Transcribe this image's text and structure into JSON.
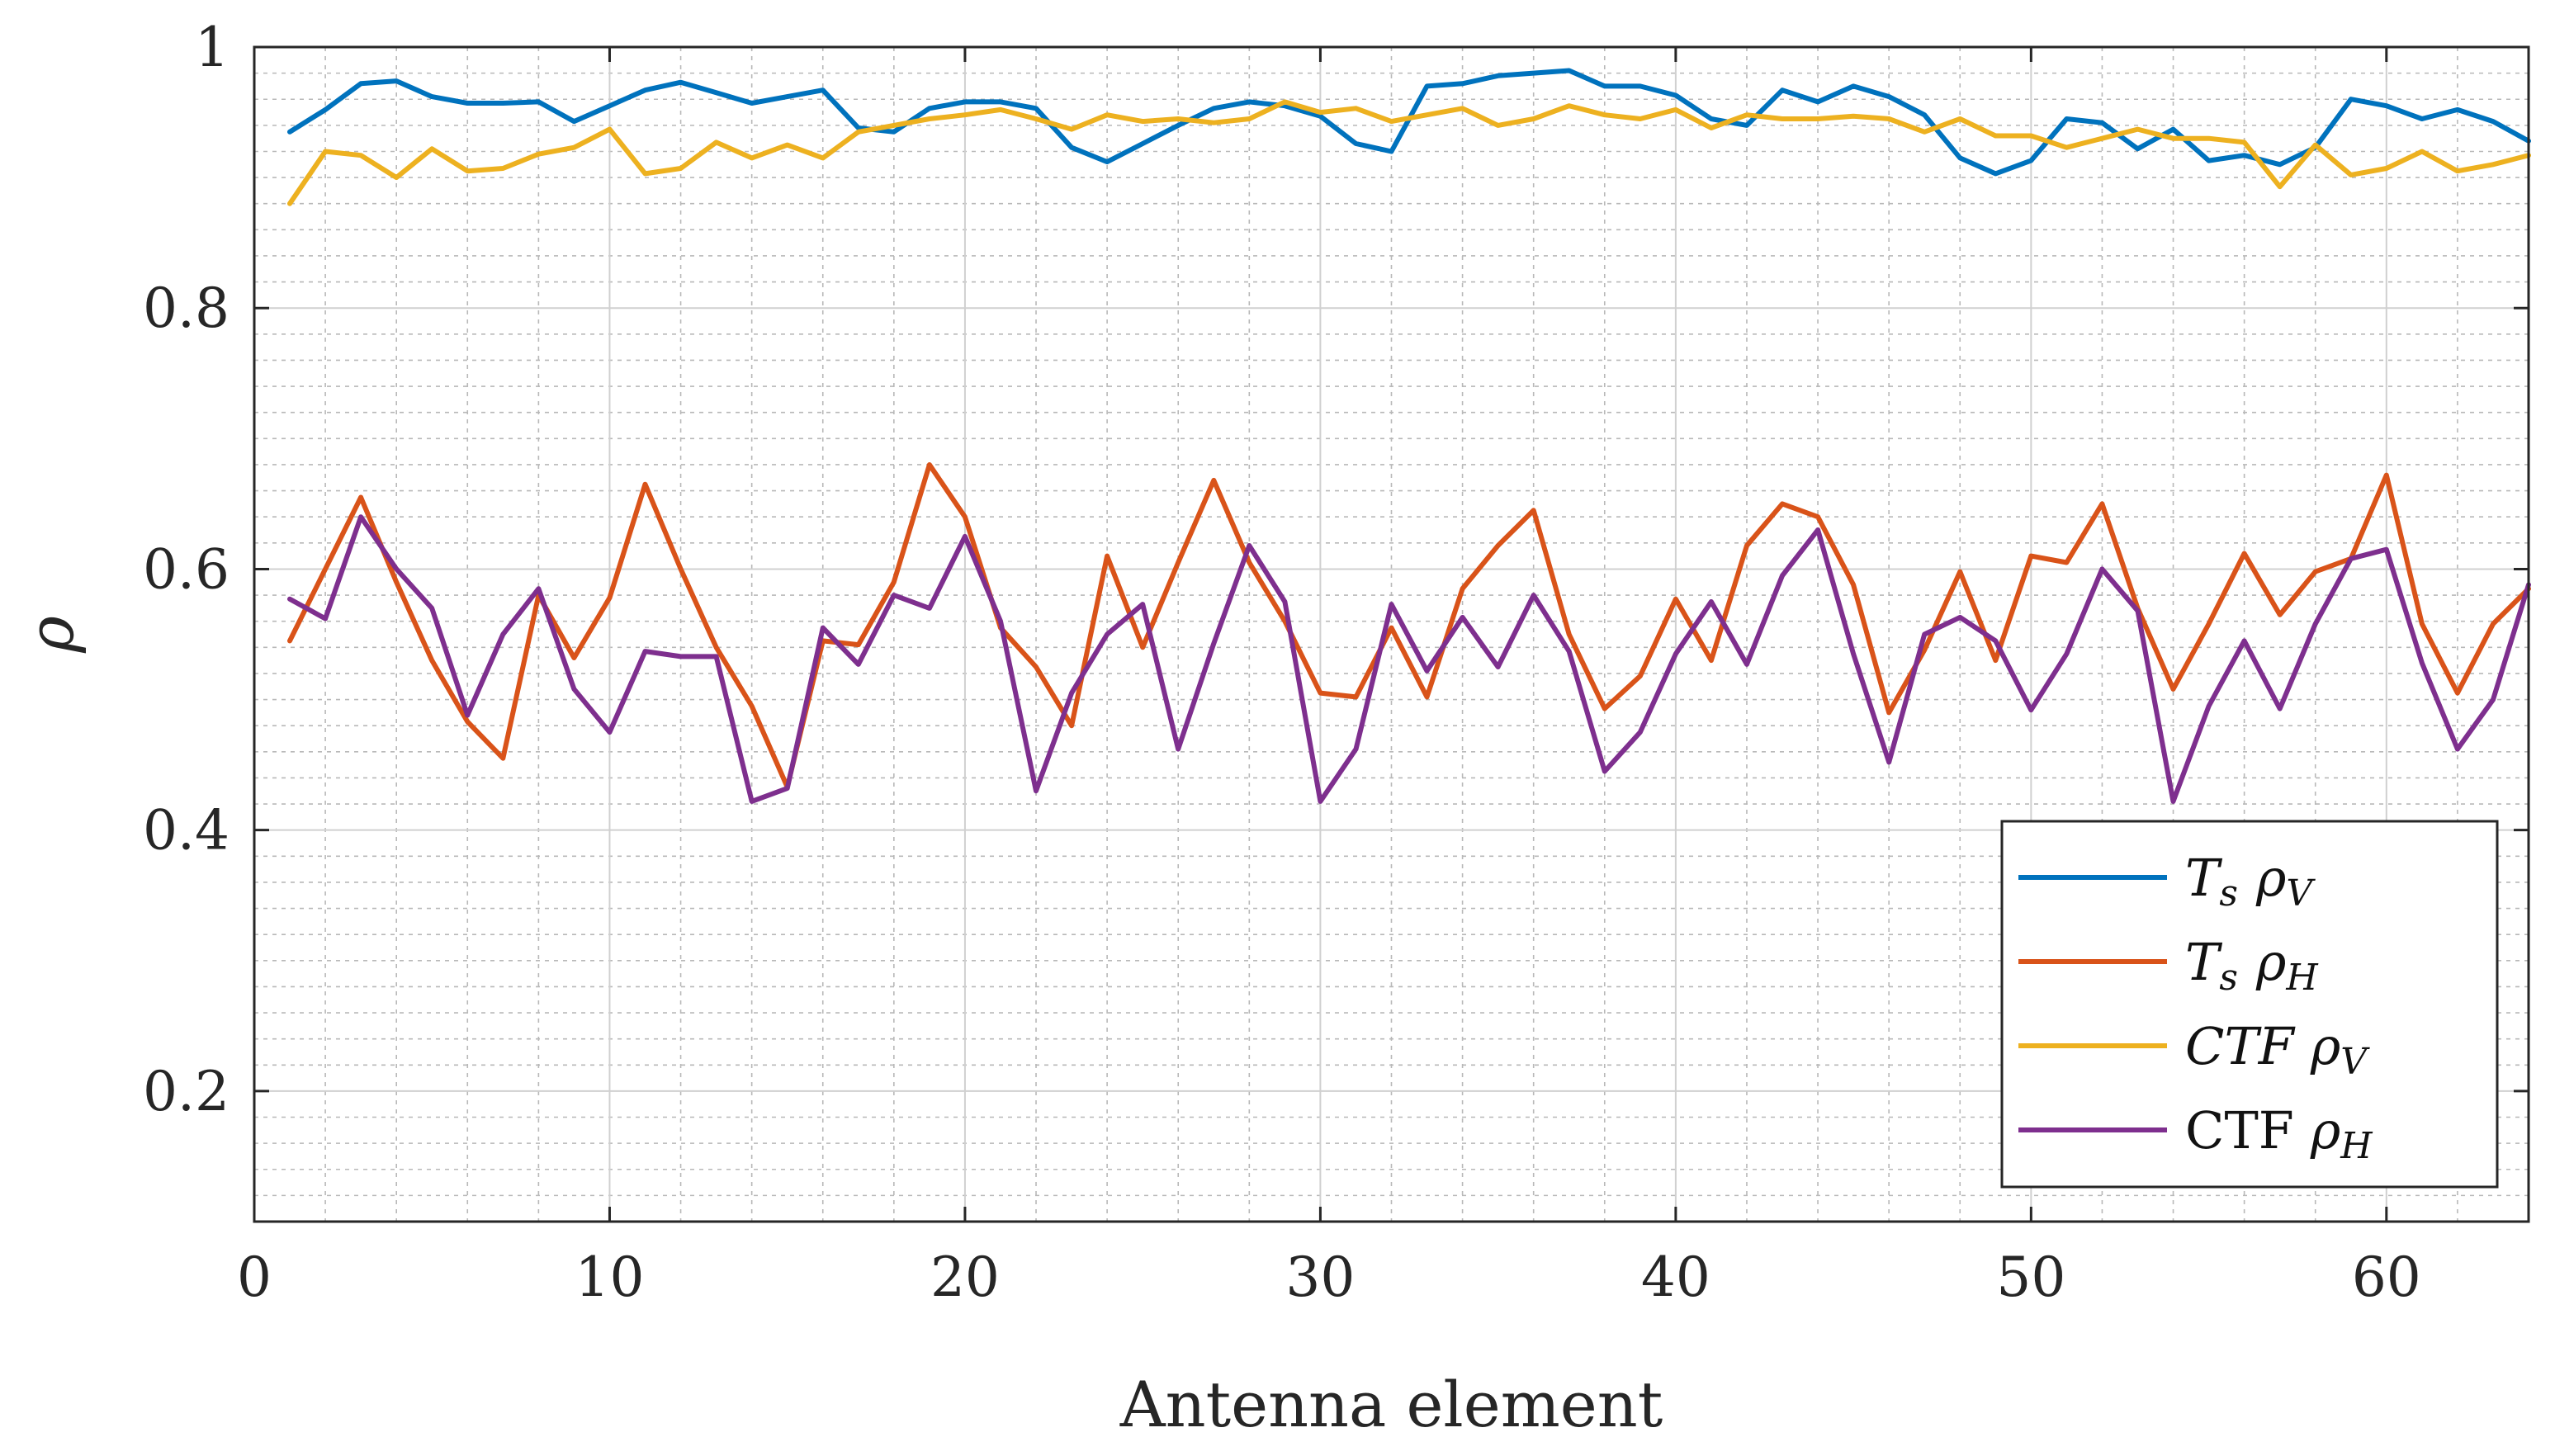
{
  "chart_data": {
    "type": "line",
    "title": "",
    "xlabel": "Antenna element",
    "ylabel": "ρ",
    "xlim": [
      0,
      64
    ],
    "ylim": [
      0.1,
      1.0
    ],
    "xticks": [
      0,
      10,
      20,
      30,
      40,
      50,
      60
    ],
    "xtick_labels": [
      "0",
      "10",
      "20",
      "30",
      "40",
      "50",
      "60"
    ],
    "yticks": [
      0.2,
      0.4,
      0.6,
      0.8,
      1.0
    ],
    "ytick_labels": [
      "0.2",
      "0.4",
      "0.6",
      "0.8",
      "1"
    ],
    "grid": true,
    "minor_grid": true,
    "legend_position": "bottom-right",
    "x": [
      1,
      2,
      3,
      4,
      5,
      6,
      7,
      8,
      9,
      10,
      11,
      12,
      13,
      14,
      15,
      16,
      17,
      18,
      19,
      20,
      21,
      22,
      23,
      24,
      25,
      26,
      27,
      28,
      29,
      30,
      31,
      32,
      33,
      34,
      35,
      36,
      37,
      38,
      39,
      40,
      41,
      42,
      43,
      44,
      45,
      46,
      47,
      48,
      49,
      50,
      51,
      52,
      53,
      54,
      55,
      56,
      57,
      58,
      59,
      60,
      61,
      62,
      63,
      64
    ],
    "series": [
      {
        "name": "Ts ρV",
        "legend_main": "T",
        "legend_sub1": "s",
        "legend_rho": "ρ",
        "legend_sub2": "V",
        "legend_upright": false,
        "color": "#0072BD",
        "values": [
          0.935,
          0.952,
          0.972,
          0.974,
          0.962,
          0.957,
          0.957,
          0.958,
          0.943,
          0.955,
          0.967,
          0.973,
          0.965,
          0.957,
          0.962,
          0.967,
          0.938,
          0.935,
          0.953,
          0.958,
          0.958,
          0.953,
          0.923,
          0.912,
          0.926,
          0.94,
          0.953,
          0.958,
          0.955,
          0.947,
          0.926,
          0.92,
          0.97,
          0.972,
          0.978,
          0.98,
          0.982,
          0.97,
          0.97,
          0.963,
          0.945,
          0.94,
          0.967,
          0.958,
          0.97,
          0.962,
          0.948,
          0.915,
          0.903,
          0.913,
          0.945,
          0.942,
          0.922,
          0.937,
          0.913,
          0.917,
          0.91,
          0.923,
          0.96,
          0.955,
          0.945,
          0.952,
          0.943,
          0.928
        ]
      },
      {
        "name": "Ts ρH",
        "legend_main": "T",
        "legend_sub1": "s",
        "legend_rho": "ρ",
        "legend_sub2": "H",
        "legend_upright": false,
        "color": "#D95319",
        "values": [
          0.545,
          0.6,
          0.655,
          0.59,
          0.53,
          0.483,
          0.455,
          0.58,
          0.532,
          0.578,
          0.665,
          0.6,
          0.54,
          0.495,
          0.433,
          0.545,
          0.542,
          0.59,
          0.68,
          0.64,
          0.555,
          0.525,
          0.48,
          0.61,
          0.54,
          0.605,
          0.668,
          0.605,
          0.56,
          0.505,
          0.502,
          0.555,
          0.502,
          0.585,
          0.618,
          0.645,
          0.55,
          0.493,
          0.518,
          0.577,
          0.53,
          0.618,
          0.65,
          0.64,
          0.588,
          0.49,
          0.538,
          0.598,
          0.53,
          0.61,
          0.605,
          0.65,
          0.57,
          0.508,
          0.558,
          0.612,
          0.565,
          0.598,
          0.608,
          0.672,
          0.558,
          0.505,
          0.558,
          0.585
        ]
      },
      {
        "name": "CTF ρV",
        "legend_main": "CTF",
        "legend_sub1": "",
        "legend_rho": "ρ",
        "legend_sub2": "V",
        "legend_upright": false,
        "color": "#EDB120",
        "values": [
          0.88,
          0.92,
          0.917,
          0.9,
          0.922,
          0.905,
          0.907,
          0.918,
          0.923,
          0.937,
          0.903,
          0.907,
          0.927,
          0.915,
          0.925,
          0.915,
          0.935,
          0.94,
          0.945,
          0.948,
          0.952,
          0.945,
          0.937,
          0.948,
          0.943,
          0.945,
          0.942,
          0.945,
          0.958,
          0.95,
          0.953,
          0.943,
          0.948,
          0.953,
          0.94,
          0.945,
          0.955,
          0.948,
          0.945,
          0.952,
          0.938,
          0.948,
          0.945,
          0.945,
          0.947,
          0.945,
          0.935,
          0.945,
          0.932,
          0.932,
          0.923,
          0.93,
          0.937,
          0.93,
          0.93,
          0.927,
          0.893,
          0.925,
          0.902,
          0.907,
          0.92,
          0.905,
          0.91,
          0.917
        ]
      },
      {
        "name": "CTF ρH",
        "legend_main": "CTF",
        "legend_sub1": "",
        "legend_rho": "ρ",
        "legend_sub2": "H",
        "legend_upright": true,
        "color": "#7E2F8E",
        "values": [
          0.577,
          0.562,
          0.64,
          0.6,
          0.57,
          0.488,
          0.55,
          0.585,
          0.508,
          0.475,
          0.537,
          0.533,
          0.533,
          0.422,
          0.432,
          0.555,
          0.527,
          0.58,
          0.57,
          0.625,
          0.56,
          0.43,
          0.505,
          0.55,
          0.573,
          0.462,
          0.543,
          0.618,
          0.575,
          0.422,
          0.462,
          0.573,
          0.522,
          0.563,
          0.525,
          0.58,
          0.537,
          0.445,
          0.475,
          0.535,
          0.575,
          0.527,
          0.595,
          0.63,
          0.535,
          0.452,
          0.55,
          0.563,
          0.545,
          0.492,
          0.535,
          0.6,
          0.568,
          0.422,
          0.495,
          0.545,
          0.493,
          0.558,
          0.608,
          0.615,
          0.528,
          0.462,
          0.5,
          0.588
        ]
      }
    ]
  }
}
